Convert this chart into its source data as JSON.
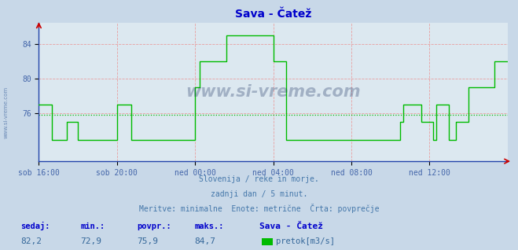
{
  "title": "Sava - Čatež",
  "subtitle1": "Slovenija / reke in morje.",
  "subtitle2": "zadnji dan / 5 minut.",
  "subtitle3": "Meritve: minimalne  Enote: metrične  Črta: povprečje",
  "xlabel_ticks": [
    "sob 16:00",
    "sob 20:00",
    "ned 00:00",
    "ned 04:00",
    "ned 08:00",
    "ned 12:00"
  ],
  "ylabel_ticks": [
    76,
    80,
    84
  ],
  "ylim_bottom": 70.5,
  "ylim_top": 86.5,
  "xlim": [
    0,
    288
  ],
  "avg_value": 75.9,
  "min_value": 72.9,
  "max_value": 84.7,
  "current_value": 82.2,
  "legend_label": "pretok[m3/s]",
  "legend_station": "Sava - Čatež",
  "stat_labels": [
    "sedaj:",
    "min.:",
    "povpr.:",
    "maks.:"
  ],
  "stat_values": [
    "82,2",
    "72,9",
    "75,9",
    "84,7"
  ],
  "bg_color": "#c8d8e8",
  "plot_bg_color": "#dce8f0",
  "grid_color": "#e8a0a0",
  "line_color": "#00bb00",
  "avg_line_color": "#00bb00",
  "title_color": "#0000cc",
  "tick_color": "#4466aa",
  "spine_color": "#2244aa",
  "watermark": "www.si-vreme.com",
  "data_x": [
    0,
    1,
    2,
    3,
    4,
    5,
    6,
    7,
    8,
    9,
    10,
    11,
    12,
    13,
    14,
    15,
    16,
    17,
    18,
    19,
    20,
    21,
    22,
    23,
    24,
    25,
    26,
    27,
    28,
    29,
    30,
    31,
    32,
    33,
    34,
    35,
    36,
    37,
    38,
    39,
    40,
    41,
    42,
    43,
    44,
    45,
    46,
    47,
    48,
    49,
    50,
    51,
    52,
    53,
    54,
    55,
    56,
    57,
    58,
    59,
    60,
    61,
    62,
    63,
    64,
    65,
    66,
    67,
    68,
    69,
    70,
    71,
    72,
    73,
    74,
    75,
    76,
    77,
    78,
    79,
    80,
    81,
    82,
    83,
    84,
    85,
    86,
    87,
    88,
    89,
    90,
    91,
    92,
    93,
    94,
    95,
    96,
    97,
    98,
    99,
    100,
    101,
    102,
    103,
    104,
    105,
    106,
    107,
    108,
    109,
    110,
    111,
    112,
    113,
    114,
    115,
    116,
    117,
    118,
    119,
    120,
    121,
    122,
    123,
    124,
    125,
    126,
    127,
    128,
    129,
    130,
    131,
    132,
    133,
    134,
    135,
    136,
    137,
    138,
    139,
    140,
    141,
    142,
    143,
    144,
    145,
    146,
    147,
    148,
    149,
    150,
    151,
    152,
    153,
    154,
    155,
    156,
    157,
    158,
    159,
    160,
    161,
    162,
    163,
    164,
    165,
    166,
    167,
    168,
    169,
    170,
    171,
    172,
    173,
    174,
    175,
    176,
    177,
    178,
    179,
    180,
    181,
    182,
    183,
    184,
    185,
    186,
    187,
    188,
    189,
    190,
    191,
    192,
    193,
    194,
    195,
    196,
    197,
    198,
    199,
    200,
    201,
    202,
    203,
    204,
    205,
    206,
    207,
    208,
    209,
    210,
    211,
    212,
    213,
    214,
    215,
    216,
    217,
    218,
    219,
    220,
    221,
    222,
    223,
    224,
    225,
    226,
    227,
    228,
    229,
    230,
    231,
    232,
    233,
    234,
    235,
    236,
    237,
    238,
    239,
    240,
    241,
    242,
    243,
    244,
    245,
    246,
    247,
    248,
    249,
    250,
    251,
    252,
    253,
    254,
    255,
    256,
    257,
    258,
    259,
    260,
    261,
    262,
    263,
    264,
    265,
    266,
    267,
    268,
    269,
    270,
    271,
    272,
    273,
    274,
    275,
    276,
    277,
    278,
    279,
    280,
    281,
    282,
    283,
    284,
    285,
    286,
    287,
    288
  ],
  "data_y": [
    77,
    77,
    77,
    77,
    77,
    77,
    77,
    77,
    73,
    73,
    73,
    73,
    73,
    73,
    73,
    73,
    73,
    75,
    75,
    75,
    75,
    75,
    75,
    75,
    73,
    73,
    73,
    73,
    73,
    73,
    73,
    73,
    73,
    73,
    73,
    73,
    73,
    73,
    73,
    73,
    73,
    73,
    73,
    73,
    73,
    73,
    73,
    73,
    77,
    77,
    77,
    77,
    77,
    77,
    77,
    77,
    77,
    73,
    73,
    73,
    73,
    73,
    73,
    73,
    73,
    73,
    73,
    73,
    73,
    73,
    73,
    73,
    73,
    73,
    73,
    73,
    73,
    73,
    73,
    73,
    73,
    73,
    73,
    73,
    73,
    73,
    73,
    73,
    73,
    73,
    73,
    73,
    73,
    73,
    73,
    73,
    79,
    79,
    79,
    82,
    82,
    82,
    82,
    82,
    82,
    82,
    82,
    82,
    82,
    82,
    82,
    82,
    82,
    82,
    82,
    85,
    85,
    85,
    85,
    85,
    85,
    85,
    85,
    85,
    85,
    85,
    85,
    85,
    85,
    85,
    85,
    85,
    85,
    85,
    85,
    85,
    85,
    85,
    85,
    85,
    85,
    85,
    85,
    85,
    82,
    82,
    82,
    82,
    82,
    82,
    82,
    82,
    73,
    73,
    73,
    73,
    73,
    73,
    73,
    73,
    73,
    73,
    73,
    73,
    73,
    73,
    73,
    73,
    73,
    73,
    73,
    73,
    73,
    73,
    73,
    73,
    73,
    73,
    73,
    73,
    73,
    73,
    73,
    73,
    73,
    73,
    73,
    73,
    73,
    73,
    73,
    73,
    73,
    73,
    73,
    73,
    73,
    73,
    73,
    73,
    73,
    73,
    73,
    73,
    73,
    73,
    73,
    73,
    73,
    73,
    73,
    73,
    73,
    73,
    73,
    73,
    73,
    73,
    73,
    73,
    73,
    73,
    75,
    75,
    77,
    77,
    77,
    77,
    77,
    77,
    77,
    77,
    77,
    77,
    77,
    75,
    75,
    75,
    75,
    75,
    75,
    75,
    73,
    73,
    77,
    77,
    77,
    77,
    77,
    77,
    77,
    77,
    73,
    73,
    73,
    73,
    75,
    75,
    75,
    75,
    75,
    75,
    75,
    75,
    79,
    79,
    79,
    79,
    79,
    79,
    79,
    79,
    79,
    79,
    79,
    79,
    79,
    79,
    79,
    79,
    82,
    82,
    82,
    82,
    82,
    82,
    82,
    82,
    82
  ]
}
